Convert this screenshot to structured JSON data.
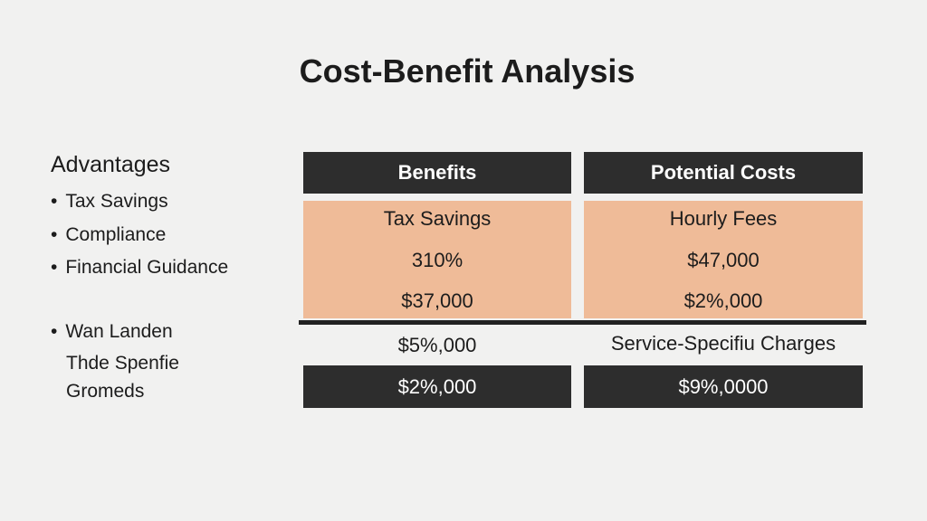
{
  "header": {
    "title": "Cost-Benefit Analysis"
  },
  "advantages": {
    "heading": "Advantages",
    "items": [
      "Tax Savings",
      "Compliance",
      "Financial Guidance"
    ],
    "extra_item": [
      "Wan Landen",
      "Thde Spenfie",
      "Gromeds"
    ]
  },
  "table": {
    "headers": [
      "Benefits",
      "Potential Costs"
    ],
    "highlighted_rows": [
      [
        "Tax Savings",
        "Hourly Fees"
      ],
      [
        "310%",
        "$47,000"
      ],
      [
        "$37,000",
        "$2%,000"
      ]
    ],
    "plain_row": [
      "$5%,000",
      "Service-Specifiu Charges"
    ],
    "total_row": [
      "$2%,000",
      "$9%,0000"
    ]
  }
}
